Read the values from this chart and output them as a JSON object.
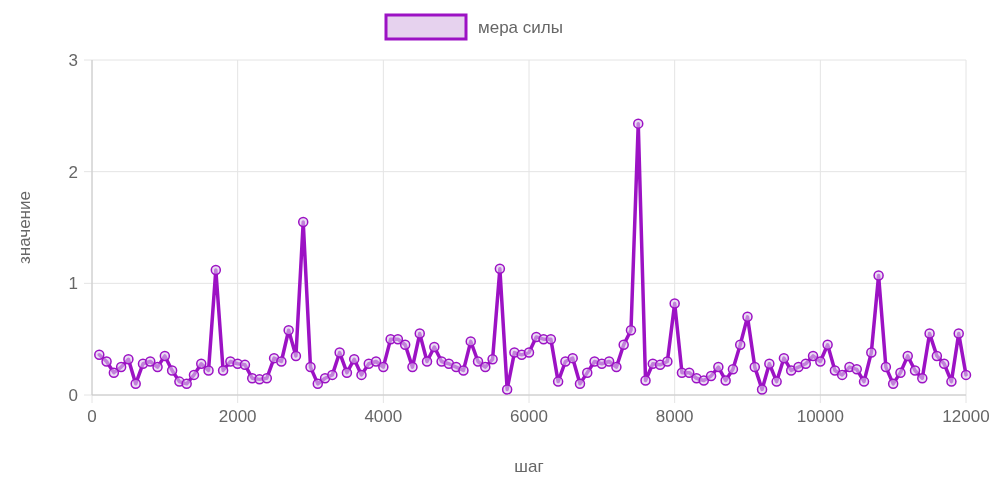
{
  "chart_data": {
    "type": "line",
    "xlabel": "шаг",
    "ylabel": "значение",
    "legend": "top",
    "grid": true,
    "marker": "circle",
    "line_style": "solid",
    "xlim": [
      0,
      12000
    ],
    "xticks": [
      0,
      2000,
      4000,
      6000,
      8000,
      10000,
      12000
    ],
    "ylim": [
      0,
      3
    ],
    "yticks": [
      0,
      1,
      2,
      3
    ],
    "series": [
      {
        "name": "мера силы",
        "color": "#9c12c4",
        "x": [
          100,
          200,
          300,
          400,
          500,
          600,
          700,
          800,
          900,
          1000,
          1100,
          1200,
          1300,
          1400,
          1500,
          1600,
          1700,
          1800,
          1900,
          2000,
          2100,
          2200,
          2300,
          2400,
          2500,
          2600,
          2700,
          2800,
          2900,
          3000,
          3100,
          3200,
          3300,
          3400,
          3500,
          3600,
          3700,
          3800,
          3900,
          4000,
          4100,
          4200,
          4300,
          4400,
          4500,
          4600,
          4700,
          4800,
          4900,
          5000,
          5100,
          5200,
          5300,
          5400,
          5500,
          5600,
          5700,
          5800,
          5900,
          6000,
          6100,
          6200,
          6300,
          6400,
          6500,
          6600,
          6700,
          6800,
          6900,
          7000,
          7100,
          7200,
          7300,
          7400,
          7500,
          7600,
          7700,
          7800,
          7900,
          8000,
          8100,
          8200,
          8300,
          8400,
          8500,
          8600,
          8700,
          8800,
          8900,
          9000,
          9100,
          9200,
          9300,
          9400,
          9500,
          9600,
          9700,
          9800,
          9900,
          10000,
          10100,
          10200,
          10300,
          10400,
          10500,
          10600,
          10700,
          10800,
          10900,
          11000,
          11100,
          11200,
          11300,
          11400,
          11500,
          11600,
          11700,
          11800,
          11900,
          12000
        ],
        "values": [
          0.36,
          0.3,
          0.2,
          0.25,
          0.32,
          0.1,
          0.28,
          0.3,
          0.25,
          0.35,
          0.22,
          0.12,
          0.1,
          0.18,
          0.28,
          0.22,
          1.12,
          0.22,
          0.3,
          0.28,
          0.27,
          0.15,
          0.14,
          0.15,
          0.33,
          0.3,
          0.58,
          0.35,
          1.55,
          0.25,
          0.1,
          0.15,
          0.18,
          0.38,
          0.2,
          0.32,
          0.18,
          0.28,
          0.3,
          0.25,
          0.5,
          0.5,
          0.45,
          0.25,
          0.55,
          0.3,
          0.43,
          0.3,
          0.28,
          0.25,
          0.22,
          0.48,
          0.3,
          0.25,
          0.32,
          1.13,
          0.05,
          0.38,
          0.36,
          0.38,
          0.52,
          0.5,
          0.5,
          0.12,
          0.3,
          0.33,
          0.1,
          0.2,
          0.3,
          0.28,
          0.3,
          0.25,
          0.45,
          0.58,
          2.43,
          0.13,
          0.28,
          0.27,
          0.3,
          0.82,
          0.2,
          0.2,
          0.15,
          0.13,
          0.17,
          0.25,
          0.13,
          0.23,
          0.45,
          0.7,
          0.25,
          0.05,
          0.28,
          0.12,
          0.33,
          0.22,
          0.25,
          0.28,
          0.35,
          0.3,
          0.45,
          0.22,
          0.18,
          0.25,
          0.23,
          0.12,
          0.38,
          1.07,
          0.25,
          0.1,
          0.2,
          0.35,
          0.22,
          0.15,
          0.55,
          0.35,
          0.28,
          0.12,
          0.55,
          0.18
        ]
      }
    ]
  }
}
